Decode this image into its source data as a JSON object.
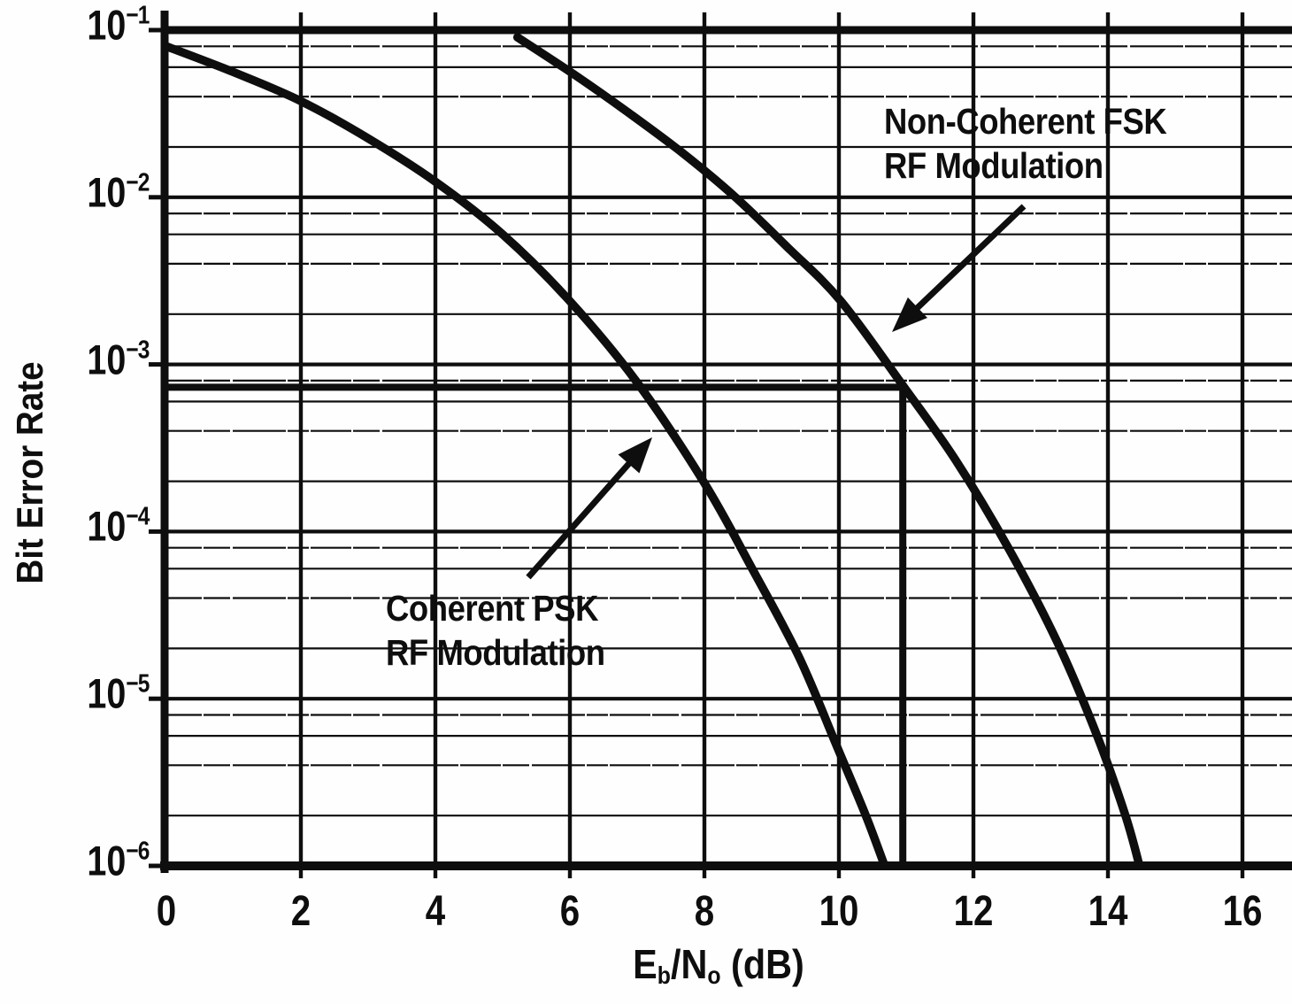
{
  "labels": {
    "y_axis": "Bit Error Rate",
    "x_axis": {
      "pre": "E",
      "sub1": "b",
      "mid": "/N",
      "sub2": "o",
      "post": " (dB)"
    },
    "fsk_line1": "Non-Coherent FSK",
    "fsk_line2": "RF Modulation",
    "psk_line1": "Coherent PSK",
    "psk_line2": "RF Modulation"
  },
  "colors": {
    "ink": "#0e0e0e",
    "grid_minor": "#1c1c1c",
    "paper": "#fefefe"
  },
  "chart_data": {
    "type": "line",
    "title": "",
    "xlabel": "Eb/No (dB)",
    "ylabel": "Bit Error Rate",
    "x_axis": {
      "min": 0,
      "max": 16.7,
      "ticks": [
        0,
        2,
        4,
        6,
        8,
        10,
        12,
        14,
        16
      ],
      "gridline_spacing_db": 2
    },
    "y_axis": {
      "scale": "log",
      "top": 0.1,
      "bottom": 1e-06,
      "decade_exponents": [
        -1,
        -2,
        -3,
        -4,
        -5,
        -6
      ],
      "minor_multipliers": [
        8,
        6,
        4,
        2
      ]
    },
    "grid": true,
    "legend_position": "labels-annotated-on-plot",
    "series": [
      {
        "name": "Coherent PSK RF Modulation",
        "points": [
          [
            0,
            0.08
          ],
          [
            1,
            0.056
          ],
          [
            2,
            0.0376
          ],
          [
            3,
            0.0225
          ],
          [
            4,
            0.0124
          ],
          [
            5,
            0.006
          ],
          [
            6,
            0.00239
          ],
          [
            7,
            0.00078
          ],
          [
            8,
            0.000195
          ],
          [
            8.7,
            6.1e-05
          ],
          [
            9.4,
            1.8e-05
          ],
          [
            9.96,
            5.3e-06
          ],
          [
            10.4,
            2e-06
          ],
          [
            10.68,
            1e-06
          ]
        ]
      },
      {
        "name": "Non-Coherent FSK RF Modulation",
        "points": [
          [
            5.22,
            0.0906
          ],
          [
            6.08,
            0.0537
          ],
          [
            6.87,
            0.0321
          ],
          [
            7.66,
            0.0186
          ],
          [
            8.45,
            0.0101
          ],
          [
            9.24,
            0.005
          ],
          [
            10.03,
            0.00239
          ],
          [
            10.97,
            0.00073
          ],
          [
            11.74,
            0.000266
          ],
          [
            12.53,
            7.84e-05
          ],
          [
            13.25,
            2.17e-05
          ],
          [
            13.84,
            6e-06
          ],
          [
            14.26,
            2e-06
          ],
          [
            14.47,
            1e-06
          ]
        ]
      }
    ],
    "reference_marker": {
      "db": 11,
      "ber": 0.00073,
      "description": "Thick guide lines: horizontal at BER ≈ 7×10⁻⁴ from y-axis to the Non-Coherent FSK curve, then vertical down to the x-axis at ≈ 11 dB"
    },
    "annotations": [
      {
        "text": "Non-Coherent FSK RF Modulation",
        "arrow_points_to": "FSK curve at ≈ 10.8 dB"
      },
      {
        "text": "Coherent PSK RF Modulation",
        "arrow_points_to": "PSK curve at ≈ 7.2 dB"
      }
    ]
  }
}
